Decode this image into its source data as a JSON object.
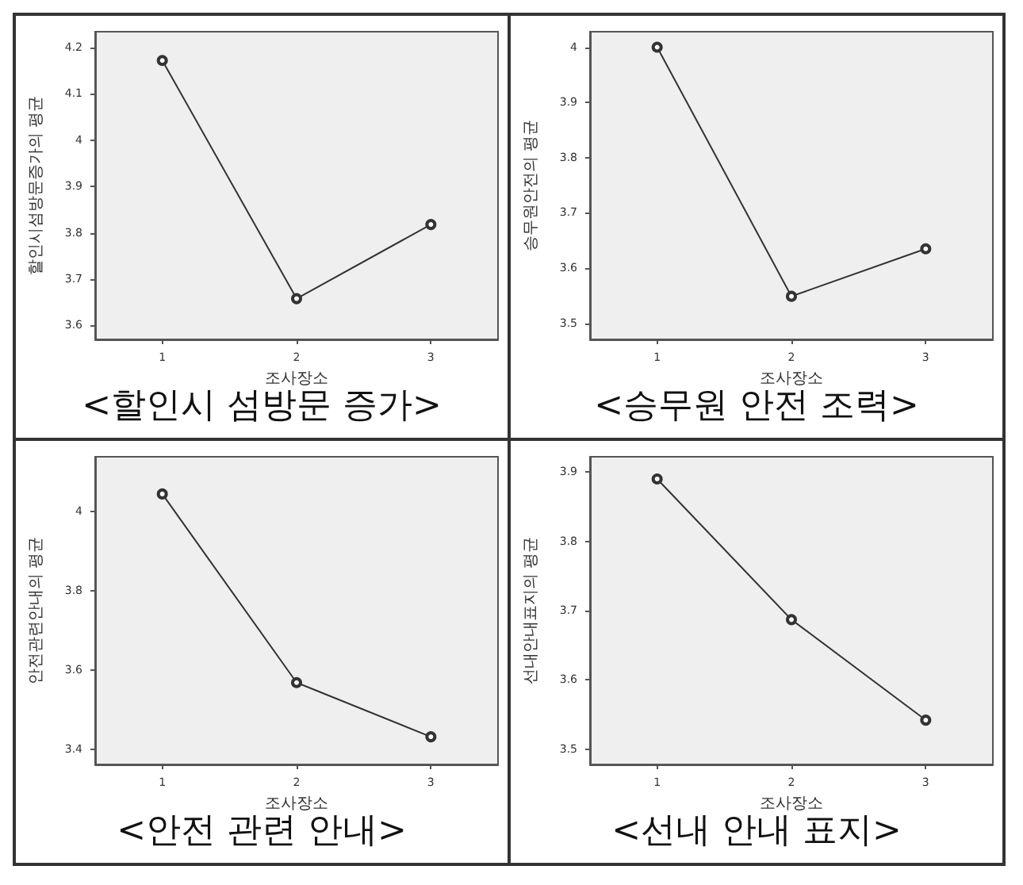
{
  "chart_data": [
    {
      "type": "line",
      "title": "<할인시 섬방문 증가>",
      "xlabel": "조사장소",
      "ylabel": "할인시섬방문증가의 평균",
      "categories": [
        "1",
        "2",
        "3"
      ],
      "series": [
        {
          "color": "#333333",
          "values": [
            4.172,
            3.658,
            3.818
          ]
        }
      ],
      "ylim": [
        3.57,
        4.234
      ],
      "yticks": [
        3.6,
        3.7,
        3.8,
        3.9,
        4,
        4.1,
        4.2
      ],
      "grid": false,
      "marker": "circle",
      "line_style": "solid"
    },
    {
      "type": "line",
      "title": "<승무원 안전 조력>",
      "xlabel": "조사장소",
      "ylabel": "승무원안전의 평균",
      "categories": [
        "1",
        "2",
        "3"
      ],
      "series": [
        {
          "color": "#333333",
          "values": [
            4.0,
            3.549,
            3.635
          ]
        }
      ],
      "ylim": [
        3.471,
        4.028
      ],
      "yticks": [
        3.5,
        3.6,
        3.7,
        3.8,
        3.9,
        4
      ],
      "grid": false,
      "marker": "circle",
      "line_style": "solid"
    },
    {
      "type": "line",
      "title": "<안전 관련 안내>",
      "xlabel": "조사장소",
      "ylabel": "안전관련안내의 평균",
      "categories": [
        "1",
        "2",
        "3"
      ],
      "series": [
        {
          "color": "#333333",
          "values": [
            4.045,
            3.568,
            3.431
          ]
        }
      ],
      "ylim": [
        3.361,
        4.139
      ],
      "yticks": [
        3.4,
        3.6,
        3.8,
        4
      ],
      "grid": false,
      "marker": "circle",
      "line_style": "solid"
    },
    {
      "type": "line",
      "title": "<선내 안내 표지>",
      "xlabel": "조사장소",
      "ylabel": "선내안내표지의 평균",
      "categories": [
        "1",
        "2",
        "3"
      ],
      "series": [
        {
          "color": "#333333",
          "values": [
            3.89,
            3.687,
            3.542
          ]
        }
      ],
      "ylim": [
        3.478,
        3.922
      ],
      "yticks": [
        3.5,
        3.6,
        3.7,
        3.8,
        3.9
      ],
      "grid": false,
      "marker": "circle",
      "line_style": "solid"
    }
  ]
}
